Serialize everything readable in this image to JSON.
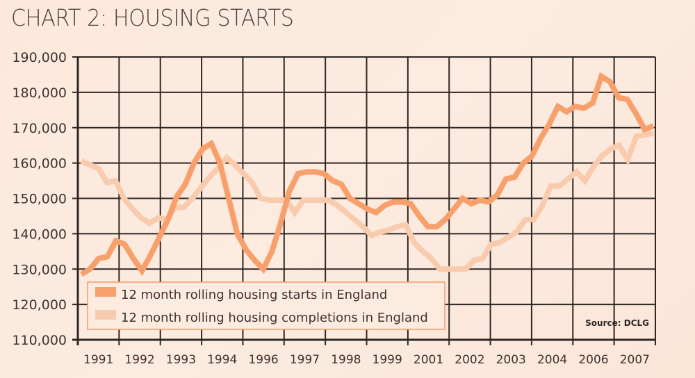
{
  "title": "CHART 2: HOUSING STARTS",
  "colors": {
    "starts": "#f7a06c",
    "completions": "#f9cbae",
    "grid": "#2e2724",
    "legend_border": "#f39a66",
    "background": "#fde9dc"
  },
  "chart_data": {
    "type": "line",
    "title": "CHART 2: HOUSING STARTS",
    "xlabel": "",
    "ylabel": "",
    "ylim": [
      110000,
      190000
    ],
    "yticks": [
      110000,
      120000,
      130000,
      140000,
      150000,
      160000,
      170000,
      180000,
      190000
    ],
    "ytick_labels": [
      "110,000",
      "120,000",
      "130,000",
      "140,000",
      "150,000",
      "160,000",
      "170,000",
      "180,000",
      "190,000"
    ],
    "xtick_labels": [
      "1991",
      "1992",
      "1993",
      "1994",
      "1996",
      "1997",
      "1998",
      "1999",
      "2001",
      "2002",
      "2003",
      "2004",
      "2006",
      "2007"
    ],
    "grid": true,
    "legend_position": "bottom-left",
    "annotation": "Source: DCLG",
    "series": [
      {
        "name": "12 month rolling housing starts in England",
        "values": [
          128500,
          130000,
          133000,
          133500,
          138000,
          137000,
          133000,
          129500,
          134000,
          139000,
          144000,
          150500,
          154000,
          160000,
          164000,
          165500,
          160000,
          150000,
          140000,
          135500,
          132500,
          130000,
          135000,
          143000,
          152000,
          157000,
          157500,
          157500,
          157000,
          155000,
          154000,
          150000,
          148500,
          147000,
          146000,
          148000,
          149000,
          149000,
          148500,
          145000,
          142000,
          142000,
          144000,
          147000,
          150000,
          148500,
          149500,
          149000,
          151000,
          155500,
          156000,
          160000,
          162000,
          167000,
          171000,
          176000,
          174500,
          176000,
          175500,
          177000,
          184500,
          183000,
          178500,
          178000,
          174000,
          169500,
          170500
        ]
      },
      {
        "name": "12 month rolling housing completions in England",
        "values": [
          160500,
          159500,
          158500,
          154500,
          155000,
          150000,
          147000,
          144500,
          143000,
          144500,
          144000,
          147500,
          147500,
          150000,
          153000,
          156000,
          158500,
          161500,
          159500,
          157000,
          154500,
          150000,
          149500,
          149500,
          149500,
          146000,
          149500,
          149500,
          149500,
          149500,
          148000,
          146000,
          144000,
          142000,
          139500,
          140500,
          141000,
          142000,
          142500,
          137500,
          135000,
          133000,
          130000,
          130000,
          130000,
          130000,
          132500,
          133000,
          137000,
          137500,
          139000,
          140500,
          144000,
          144000,
          148000,
          153500,
          153500,
          155500,
          157500,
          155000,
          159000,
          162000,
          164000,
          165000,
          161000,
          167500,
          168000,
          168500
        ]
      }
    ]
  }
}
